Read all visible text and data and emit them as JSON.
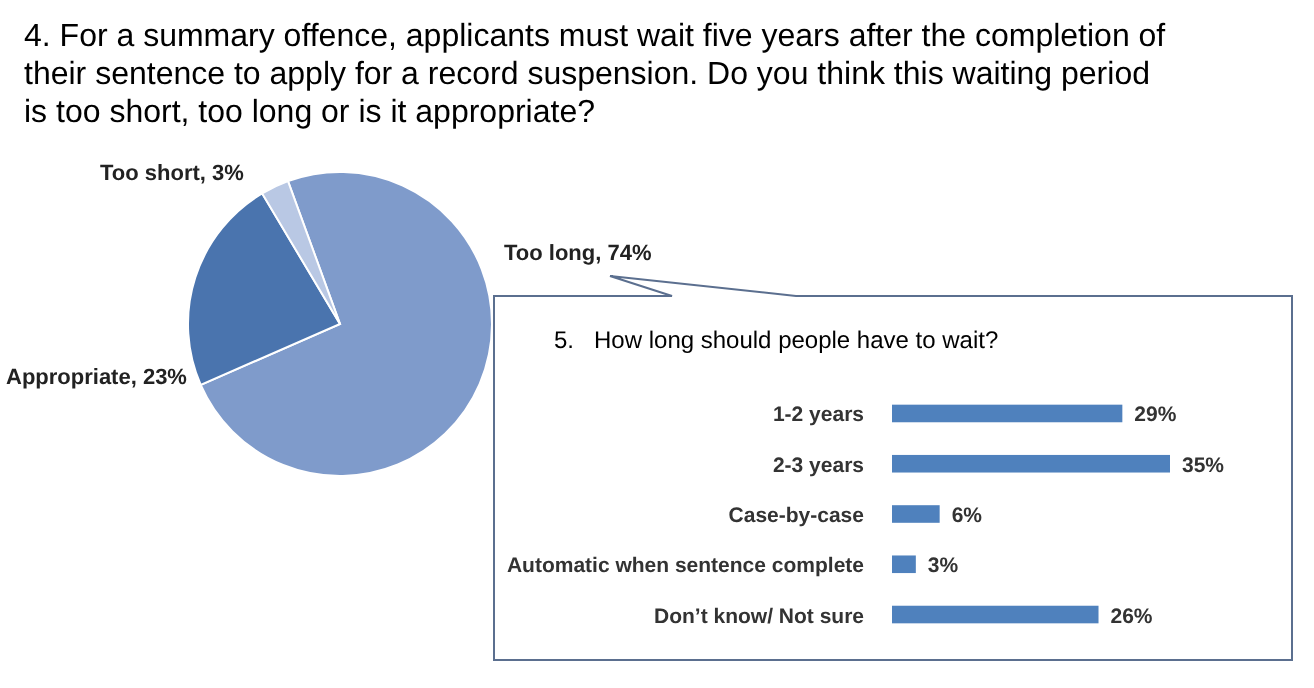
{
  "chart_data": [
    {
      "type": "pie",
      "title": "4. For a summary offence, applicants must wait five years after the completion of their sentence to apply for a record suspension. Do you think this waiting period is too short, too long or is it appropriate?",
      "categories": [
        "Too long",
        "Appropriate",
        "Too short"
      ],
      "values": [
        74,
        23,
        3
      ],
      "colors": [
        "#7f9bcb",
        "#4a74ae",
        "#b9c8e4"
      ],
      "value_labels": [
        "74%",
        "23%",
        "3%"
      ]
    },
    {
      "type": "bar",
      "orientation": "horizontal",
      "title": "5.   How long should people have to wait?",
      "categories": [
        "1-2 years",
        "2-3 years",
        "Case-by-case",
        "Automatic when sentence complete",
        "Don’t know/ Not sure"
      ],
      "values": [
        29,
        35,
        6,
        3,
        26
      ],
      "color": "#4f81bd",
      "value_labels": [
        "29%",
        "35%",
        "6%",
        "3%",
        "26%"
      ]
    }
  ]
}
